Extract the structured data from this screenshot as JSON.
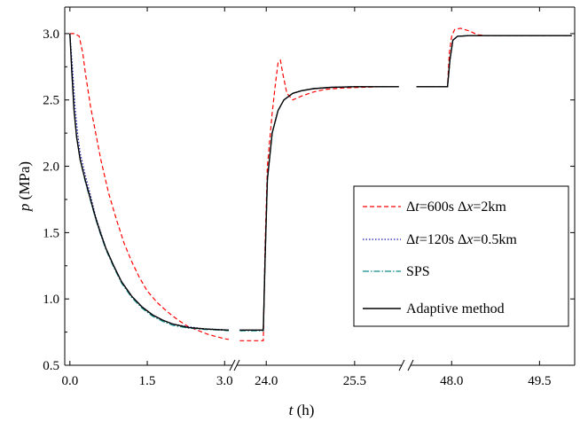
{
  "chart_data": {
    "type": "line",
    "xlabel": {
      "italic": "t",
      "rest": " (h)"
    },
    "ylabel": {
      "italic": "p",
      "rest": " (MPa)"
    },
    "ylim": [
      0.5,
      3.2
    ],
    "y_ticks": [
      {
        "value": 0.5,
        "label": "0.5"
      },
      {
        "value": 1.0,
        "label": "1.0"
      },
      {
        "value": 1.5,
        "label": "1.5"
      },
      {
        "value": 2.0,
        "label": "2.0"
      },
      {
        "value": 2.5,
        "label": "2.5"
      },
      {
        "value": 3.0,
        "label": "3.0"
      }
    ],
    "broken_x_axis": true,
    "x_segments": [
      {
        "range": [
          -0.1,
          3.15
        ],
        "ticks": [
          {
            "value": 0.0,
            "label": "0.0"
          },
          {
            "value": 1.5,
            "label": "1.5"
          },
          {
            "value": 3.0,
            "label": "3.0"
          }
        ]
      },
      {
        "range": [
          23.5,
          26.3
        ],
        "ticks": [
          {
            "value": 24.0,
            "label": "24.0"
          },
          {
            "value": 25.5,
            "label": "25.5"
          }
        ]
      },
      {
        "range": [
          47.3,
          50.1
        ],
        "ticks": [
          {
            "value": 48.0,
            "label": "48.0"
          },
          {
            "value": 49.5,
            "label": "49.5"
          }
        ]
      }
    ],
    "legend_position": "right",
    "series": [
      {
        "name": "Δt=600s Δx=2km",
        "legend_parts": [
          {
            "text": "Δ",
            "italic": false
          },
          {
            "text": "t",
            "italic": true
          },
          {
            "text": "=600s  ",
            "italic": false
          },
          {
            "text": "Δ",
            "italic": false
          },
          {
            "text": "x",
            "italic": true
          },
          {
            "text": "=2km",
            "italic": false
          }
        ],
        "color": "#ff0000",
        "dash": "5,3",
        "points": [
          [
            0,
            3.0
          ],
          [
            0.1,
            3.0
          ],
          [
            0.18,
            2.98
          ],
          [
            0.25,
            2.85
          ],
          [
            0.3,
            2.7
          ],
          [
            0.4,
            2.45
          ],
          [
            0.5,
            2.25
          ],
          [
            0.6,
            2.05
          ],
          [
            0.75,
            1.8
          ],
          [
            0.9,
            1.6
          ],
          [
            1.05,
            1.42
          ],
          [
            1.2,
            1.28
          ],
          [
            1.35,
            1.16
          ],
          [
            1.5,
            1.06
          ],
          [
            1.7,
            0.97
          ],
          [
            1.9,
            0.9
          ],
          [
            2.1,
            0.84
          ],
          [
            2.3,
            0.79
          ],
          [
            2.5,
            0.76
          ],
          [
            2.7,
            0.73
          ],
          [
            2.9,
            0.71
          ],
          [
            3.0,
            0.7
          ],
          [
            3.08,
            0.695
          ],
          null,
          [
            23.55,
            0.685
          ],
          [
            23.7,
            0.685
          ],
          [
            23.85,
            0.685
          ],
          [
            23.95,
            0.685
          ],
          [
            23.98,
            1.4
          ],
          [
            24.02,
            2.0
          ],
          [
            24.1,
            2.4
          ],
          [
            24.15,
            2.6
          ],
          [
            24.2,
            2.78
          ],
          [
            24.24,
            2.8
          ],
          [
            24.28,
            2.7
          ],
          [
            24.35,
            2.55
          ],
          [
            24.45,
            2.5
          ],
          [
            24.6,
            2.53
          ],
          [
            24.8,
            2.56
          ],
          [
            25.0,
            2.58
          ],
          [
            25.3,
            2.59
          ],
          [
            25.6,
            2.595
          ],
          [
            26.0,
            2.6
          ],
          [
            26.25,
            2.6
          ],
          null,
          [
            47.4,
            2.6
          ],
          [
            47.6,
            2.6
          ],
          [
            47.85,
            2.6
          ],
          [
            47.93,
            2.6
          ],
          [
            47.96,
            2.85
          ],
          [
            48.0,
            2.98
          ],
          [
            48.05,
            3.03
          ],
          [
            48.15,
            3.04
          ],
          [
            48.3,
            3.02
          ],
          [
            48.45,
            2.99
          ],
          [
            48.6,
            2.985
          ],
          [
            48.8,
            2.985
          ],
          [
            49.2,
            2.985
          ],
          [
            49.6,
            2.985
          ],
          [
            50.05,
            2.985
          ]
        ]
      },
      {
        "name": "Δt=120s Δx=0.5km",
        "legend_parts": [
          {
            "text": "Δ",
            "italic": false
          },
          {
            "text": "t",
            "italic": true
          },
          {
            "text": "=120s  ",
            "italic": false
          },
          {
            "text": "Δ",
            "italic": false
          },
          {
            "text": "x",
            "italic": true
          },
          {
            "text": "=0.5km",
            "italic": false
          }
        ],
        "color": "#1a1aa6",
        "dash": "1.5,2",
        "points": [
          [
            0,
            3.0
          ],
          [
            0.05,
            2.75
          ],
          [
            0.1,
            2.45
          ],
          [
            0.15,
            2.25
          ],
          [
            0.2,
            2.1
          ],
          [
            0.3,
            1.93
          ],
          [
            0.4,
            1.78
          ],
          [
            0.5,
            1.62
          ],
          [
            0.6,
            1.5
          ],
          [
            0.7,
            1.38
          ],
          [
            0.85,
            1.25
          ],
          [
            1.0,
            1.13
          ],
          [
            1.2,
            1.02
          ],
          [
            1.4,
            0.94
          ],
          [
            1.6,
            0.88
          ],
          [
            1.8,
            0.84
          ],
          [
            2.0,
            0.81
          ],
          [
            2.3,
            0.79
          ],
          [
            2.6,
            0.775
          ],
          [
            2.9,
            0.77
          ],
          [
            3.08,
            0.765
          ],
          null,
          [
            23.55,
            0.765
          ],
          [
            23.75,
            0.765
          ],
          [
            23.95,
            0.765
          ],
          [
            23.98,
            1.3
          ],
          [
            24.02,
            1.9
          ],
          [
            24.1,
            2.25
          ],
          [
            24.2,
            2.42
          ],
          [
            24.3,
            2.5
          ],
          [
            24.45,
            2.55
          ],
          [
            24.6,
            2.57
          ],
          [
            24.8,
            2.585
          ],
          [
            25.1,
            2.595
          ],
          [
            25.5,
            2.6
          ],
          [
            26.25,
            2.6
          ],
          null,
          [
            47.4,
            2.6
          ],
          [
            47.7,
            2.6
          ],
          [
            47.93,
            2.6
          ],
          [
            47.97,
            2.8
          ],
          [
            48.02,
            2.95
          ],
          [
            48.1,
            2.98
          ],
          [
            48.3,
            2.985
          ],
          [
            49.0,
            2.985
          ],
          [
            50.05,
            2.985
          ]
        ]
      },
      {
        "name": "SPS",
        "legend_parts": [
          {
            "text": "SPS",
            "italic": false
          }
        ],
        "color": "#0e8a8a",
        "dash": "7,2,1.5,2",
        "points": [
          [
            0,
            3.0
          ],
          [
            0.04,
            2.7
          ],
          [
            0.08,
            2.42
          ],
          [
            0.13,
            2.22
          ],
          [
            0.2,
            2.05
          ],
          [
            0.3,
            1.88
          ],
          [
            0.4,
            1.74
          ],
          [
            0.5,
            1.6
          ],
          [
            0.6,
            1.48
          ],
          [
            0.7,
            1.37
          ],
          [
            0.85,
            1.24
          ],
          [
            1.0,
            1.12
          ],
          [
            1.2,
            1.01
          ],
          [
            1.4,
            0.93
          ],
          [
            1.6,
            0.87
          ],
          [
            1.8,
            0.83
          ],
          [
            2.0,
            0.8
          ],
          [
            2.3,
            0.78
          ],
          [
            2.6,
            0.77
          ],
          [
            2.9,
            0.765
          ],
          [
            3.08,
            0.76
          ],
          null,
          [
            23.55,
            0.76
          ],
          [
            23.75,
            0.76
          ],
          [
            23.95,
            0.76
          ],
          [
            23.98,
            1.3
          ],
          [
            24.02,
            1.9
          ],
          [
            24.1,
            2.25
          ],
          [
            24.2,
            2.42
          ],
          [
            24.3,
            2.5
          ],
          [
            24.45,
            2.55
          ],
          [
            24.6,
            2.57
          ],
          [
            24.8,
            2.585
          ],
          [
            25.1,
            2.595
          ],
          [
            25.5,
            2.6
          ],
          [
            26.25,
            2.6
          ],
          null,
          [
            47.4,
            2.6
          ],
          [
            47.7,
            2.6
          ],
          [
            47.93,
            2.6
          ],
          [
            47.97,
            2.8
          ],
          [
            48.02,
            2.95
          ],
          [
            48.1,
            2.98
          ],
          [
            48.3,
            2.985
          ],
          [
            49.0,
            2.985
          ],
          [
            50.05,
            2.985
          ]
        ]
      },
      {
        "name": "Adaptive method",
        "legend_parts": [
          {
            "text": "Adaptive method",
            "italic": false
          }
        ],
        "color": "#000000",
        "dash": "",
        "points": [
          [
            0,
            3.0
          ],
          [
            0.04,
            2.7
          ],
          [
            0.08,
            2.42
          ],
          [
            0.13,
            2.22
          ],
          [
            0.2,
            2.05
          ],
          [
            0.3,
            1.89
          ],
          [
            0.4,
            1.75
          ],
          [
            0.5,
            1.61
          ],
          [
            0.6,
            1.49
          ],
          [
            0.7,
            1.38
          ],
          [
            0.85,
            1.25
          ],
          [
            1.0,
            1.13
          ],
          [
            1.2,
            1.02
          ],
          [
            1.4,
            0.94
          ],
          [
            1.6,
            0.88
          ],
          [
            1.8,
            0.84
          ],
          [
            2.0,
            0.81
          ],
          [
            2.3,
            0.785
          ],
          [
            2.6,
            0.775
          ],
          [
            2.9,
            0.768
          ],
          [
            3.08,
            0.765
          ],
          null,
          [
            23.55,
            0.765
          ],
          [
            23.75,
            0.765
          ],
          [
            23.95,
            0.765
          ],
          [
            23.98,
            1.3
          ],
          [
            24.02,
            1.9
          ],
          [
            24.1,
            2.25
          ],
          [
            24.2,
            2.42
          ],
          [
            24.3,
            2.5
          ],
          [
            24.45,
            2.55
          ],
          [
            24.6,
            2.57
          ],
          [
            24.8,
            2.585
          ],
          [
            25.1,
            2.595
          ],
          [
            25.5,
            2.6
          ],
          [
            26.25,
            2.6
          ],
          null,
          [
            47.4,
            2.6
          ],
          [
            47.7,
            2.6
          ],
          [
            47.93,
            2.6
          ],
          [
            47.97,
            2.8
          ],
          [
            48.02,
            2.95
          ],
          [
            48.1,
            2.98
          ],
          [
            48.3,
            2.985
          ],
          [
            49.0,
            2.985
          ],
          [
            50.05,
            2.985
          ]
        ]
      }
    ]
  }
}
